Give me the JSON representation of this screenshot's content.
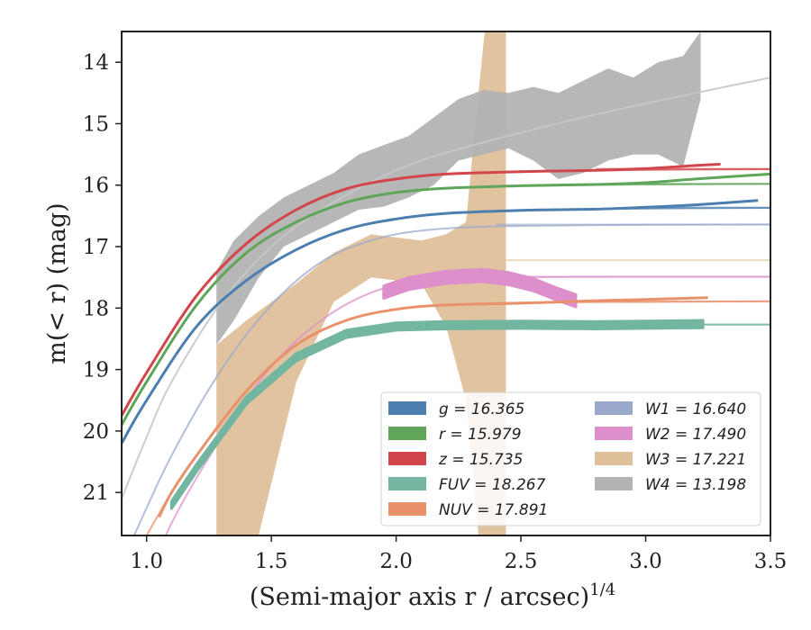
{
  "chart_data": {
    "type": "line",
    "xlabel": "(Semi-major axis r / arcsec)",
    "xlabel_exponent": "1/4",
    "ylabel": "m(< r) (mag)",
    "xlim": [
      0.9,
      3.5
    ],
    "ylim": [
      21.7,
      13.5
    ],
    "y_inverted": true,
    "x_ticks": [
      "1.0",
      "1.5",
      "2.0",
      "2.5",
      "3.0",
      "3.5"
    ],
    "y_ticks": [
      "14",
      "15",
      "16",
      "17",
      "18",
      "19",
      "20",
      "21"
    ],
    "grid": false,
    "legend_position": "lower-right",
    "series": [
      {
        "name": "g",
        "legend_text": "g = 16.365",
        "color": "#4c7fb0",
        "asymptote": 16.365,
        "model_x": [
          0.9,
          1.0,
          1.2,
          1.4,
          1.6,
          1.8,
          2.0,
          2.2,
          2.5,
          3.0,
          3.5
        ],
        "model_y": [
          20.2,
          19.5,
          18.3,
          17.55,
          17.05,
          16.72,
          16.55,
          16.46,
          16.41,
          16.38,
          16.37
        ],
        "data_x": [
          0.9,
          1.0,
          1.2,
          1.4,
          1.6,
          1.8,
          2.0,
          2.2,
          2.5,
          2.8,
          3.0,
          3.2,
          3.45
        ],
        "data_y": [
          20.2,
          19.5,
          18.3,
          17.55,
          17.05,
          16.72,
          16.55,
          16.46,
          16.41,
          16.39,
          16.36,
          16.32,
          16.25
        ],
        "band_half_width": 0.03
      },
      {
        "name": "r",
        "legend_text": "r = 15.979",
        "color": "#5fa55a",
        "asymptote": 15.979,
        "model_x": [
          0.9,
          1.0,
          1.2,
          1.4,
          1.6,
          1.8,
          2.0,
          2.2,
          2.5,
          3.0,
          3.5
        ],
        "model_y": [
          19.9,
          19.2,
          17.95,
          17.1,
          16.6,
          16.28,
          16.12,
          16.05,
          16.01,
          15.99,
          15.98
        ],
        "data_x": [
          0.9,
          1.0,
          1.2,
          1.4,
          1.6,
          1.8,
          2.0,
          2.2,
          2.5,
          2.8,
          3.0,
          3.2,
          3.5
        ],
        "data_y": [
          19.9,
          19.2,
          17.95,
          17.1,
          16.6,
          16.28,
          16.12,
          16.05,
          16.01,
          15.99,
          15.96,
          15.9,
          15.82
        ],
        "band_half_width": 0.03
      },
      {
        "name": "z",
        "legend_text": "z = 15.735",
        "color": "#d2464b",
        "asymptote": 15.735,
        "model_x": [
          0.9,
          1.0,
          1.2,
          1.4,
          1.6,
          1.8,
          2.0,
          2.2,
          2.5,
          3.0,
          3.5
        ],
        "model_y": [
          19.75,
          19.05,
          17.8,
          16.95,
          16.4,
          16.06,
          15.9,
          15.82,
          15.78,
          15.75,
          15.74
        ],
        "data_x": [
          0.9,
          1.0,
          1.2,
          1.4,
          1.6,
          1.8,
          2.0,
          2.2,
          2.5,
          2.8,
          3.0,
          3.2,
          3.3
        ],
        "data_y": [
          19.75,
          19.05,
          17.8,
          16.95,
          16.4,
          16.06,
          15.9,
          15.82,
          15.78,
          15.76,
          15.73,
          15.68,
          15.66
        ],
        "band_half_width": 0.03
      },
      {
        "name": "FUV",
        "legend_text": "FUV = 18.267",
        "color": "#72b6a2",
        "asymptote": 18.267,
        "model_x": [
          1.1,
          1.2,
          1.4,
          1.6,
          1.8,
          2.0,
          2.2,
          2.5,
          3.0,
          3.5
        ],
        "model_y": [
          21.2,
          20.6,
          19.5,
          18.8,
          18.42,
          18.3,
          18.28,
          18.27,
          18.27,
          18.27
        ],
        "data_x": [
          1.1,
          1.2,
          1.4,
          1.6,
          1.8,
          2.0,
          2.2,
          2.5,
          2.8,
          3.0,
          3.23
        ],
        "data_y": [
          21.2,
          20.6,
          19.5,
          18.8,
          18.42,
          18.3,
          18.28,
          18.27,
          18.28,
          18.27,
          18.26
        ],
        "band_half_width": 0.06
      },
      {
        "name": "NUV",
        "legend_text": "NUV = 17.891",
        "color": "#e8916b",
        "asymptote": 17.891,
        "model_x": [
          1.0,
          1.1,
          1.2,
          1.4,
          1.6,
          1.8,
          2.0,
          2.2,
          2.5,
          3.0,
          3.5
        ],
        "model_y": [
          21.7,
          21.0,
          20.4,
          19.35,
          18.6,
          18.2,
          18.02,
          17.95,
          17.91,
          17.9,
          17.89
        ],
        "data_x": [
          1.05,
          1.1,
          1.2,
          1.4,
          1.6,
          1.8,
          2.0,
          2.2,
          2.5,
          2.8,
          3.0,
          3.25
        ],
        "data_y": [
          21.4,
          21.0,
          20.4,
          19.35,
          18.6,
          18.2,
          18.02,
          17.95,
          17.92,
          17.88,
          17.86,
          17.83
        ],
        "band_half_width": 0.04
      },
      {
        "name": "W1",
        "legend_text": "W1 = 16.640",
        "color": "#9aa9cb",
        "asymptote": 16.64,
        "model_x": [
          0.95,
          1.1,
          1.3,
          1.5,
          1.7,
          1.9,
          2.1,
          2.4,
          3.0,
          3.5
        ],
        "model_y": [
          21.7,
          20.4,
          19.0,
          17.95,
          17.25,
          16.9,
          16.74,
          16.67,
          16.645,
          16.64
        ],
        "data_x": [],
        "data_y": [],
        "band_half_width": 0.0
      },
      {
        "name": "W2",
        "legend_text": "W2 = 17.490",
        "color": "#dd8fcc",
        "asymptote": 17.49,
        "model_x": [
          1.0,
          1.1,
          1.3,
          1.5,
          1.7,
          1.9,
          2.1,
          2.4,
          3.0,
          3.5
        ],
        "model_y": [
          22.5,
          21.5,
          20.1,
          18.95,
          18.2,
          17.75,
          17.56,
          17.5,
          17.49,
          17.49
        ],
        "data_x": [
          1.95,
          2.05,
          2.2,
          2.35,
          2.45,
          2.55,
          2.65,
          2.72
        ],
        "data_y": [
          17.74,
          17.6,
          17.5,
          17.47,
          17.52,
          17.62,
          17.78,
          17.88
        ],
        "band_half_width": 0.1
      },
      {
        "name": "W3",
        "legend_text": "W3 = 17.221",
        "color": "#dfc09a",
        "asymptote": 17.221,
        "model_x": [],
        "model_y": [],
        "band_x": [
          1.28,
          1.4,
          1.6,
          1.75,
          1.9,
          2.1,
          2.2,
          2.28,
          2.33,
          2.38,
          2.4,
          2.42,
          2.44
        ],
        "band_upper": [
          18.6,
          18.2,
          17.6,
          17.1,
          16.8,
          16.9,
          16.8,
          16.6,
          14.5,
          12.5,
          12.0,
          12.0,
          12.0
        ],
        "band_lower": [
          22.5,
          22.5,
          19.2,
          17.9,
          17.5,
          17.6,
          18.3,
          19.5,
          21.7,
          22.5,
          22.5,
          22.5,
          22.5
        ]
      },
      {
        "name": "W4",
        "legend_text": "W4 = 13.198",
        "color": "#b3b3b3",
        "asymptote": 13.198,
        "model_x": [
          0.9,
          1.0,
          1.1,
          1.3,
          1.5,
          1.7,
          1.9,
          2.1,
          2.4,
          2.8,
          3.2,
          3.5
        ],
        "model_y": [
          21.1,
          20.1,
          19.2,
          17.9,
          17.0,
          16.4,
          15.95,
          15.6,
          15.25,
          14.85,
          14.5,
          14.25
        ],
        "band_x": [
          1.28,
          1.35,
          1.45,
          1.55,
          1.65,
          1.75,
          1.85,
          1.95,
          2.05,
          2.15,
          2.25,
          2.35,
          2.45,
          2.55,
          2.65,
          2.75,
          2.85,
          2.95,
          3.05,
          3.15,
          3.22
        ],
        "band_upper": [
          17.4,
          16.9,
          16.5,
          16.2,
          16.0,
          15.8,
          15.5,
          15.35,
          15.2,
          14.9,
          14.6,
          14.45,
          14.5,
          14.4,
          14.5,
          14.3,
          14.1,
          14.25,
          14.0,
          13.9,
          13.5
        ],
        "band_lower": [
          18.6,
          18.2,
          17.5,
          17.0,
          16.8,
          16.6,
          16.4,
          16.35,
          16.2,
          16.0,
          15.6,
          15.5,
          15.4,
          15.6,
          15.9,
          15.8,
          15.6,
          15.5,
          15.5,
          15.7,
          14.6
        ]
      }
    ]
  }
}
